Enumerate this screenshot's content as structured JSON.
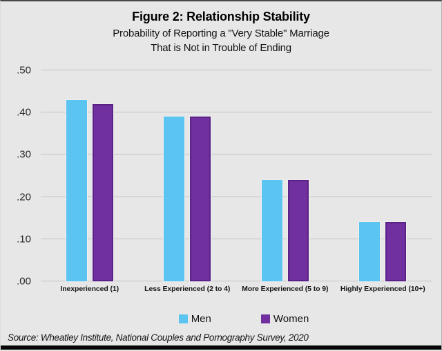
{
  "figure": {
    "title": "Figure 2: Relationship Stability",
    "subtitle_line1": "Probability of Reporting a \"Very Stable\" Marriage",
    "subtitle_line2": "That is Not in Trouble of Ending",
    "source": "Source: Wheatley Institute, National Couples and Pornography Survey, 2020"
  },
  "colors": {
    "background": "#e7e7e7",
    "gridline": "#c1c1c3",
    "men_blue": "#5bc4f0",
    "women_purple": "#7030a0",
    "women_border": "#5a2187"
  },
  "chart_data": {
    "type": "bar",
    "title": "Figure 2: Relationship Stability",
    "subtitle": "Probability of Reporting a \"Very Stable\" Marriage That is Not in Trouble of Ending",
    "categories": [
      "Inexperienced (1)",
      "Less Experienced (2 to 4)",
      "More Experienced (5 to 9)",
      "Highly Experienced (10+)"
    ],
    "series": [
      {
        "name": "Men",
        "color": "#5bc4f0",
        "border_color": null,
        "values": [
          0.43,
          0.39,
          0.24,
          0.14
        ]
      },
      {
        "name": "Women",
        "color": "#7030a0",
        "border_color": "#5a2187",
        "values": [
          0.42,
          0.39,
          0.24,
          0.14
        ]
      }
    ],
    "xlabel": "",
    "ylabel": "",
    "ylim": [
      0,
      0.5
    ],
    "ytick_labels": [
      ".00",
      ".10",
      ".20",
      ".30",
      ".40",
      ".50"
    ],
    "ytick_values": [
      0,
      0.1,
      0.2,
      0.3,
      0.4,
      0.5
    ],
    "grid": true,
    "legend_position": "bottom",
    "source": "Source: Wheatley Institute, National Couples and Pornography Survey, 2020"
  }
}
